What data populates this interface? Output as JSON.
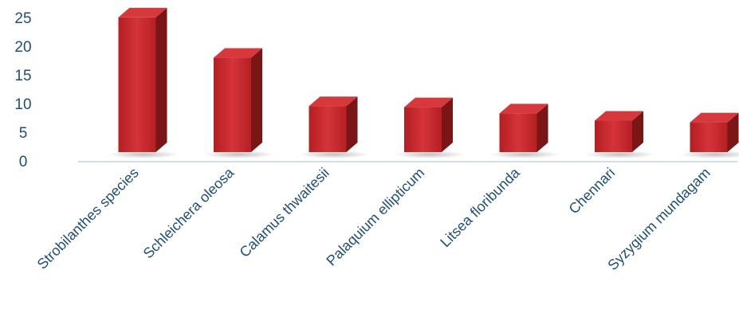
{
  "chart_data": {
    "type": "bar",
    "style": "3d-column",
    "categories": [
      "Strobilanthes species",
      "Schleichera oleosa",
      "Calamus thwaitesii",
      "Palaquium ellipticum",
      "Litsea floribunda",
      "Chennari",
      "Syzygium mundagam"
    ],
    "values": [
      24,
      16.8,
      8.2,
      8,
      6.9,
      5.6,
      5.3
    ],
    "ylim": [
      0,
      25
    ],
    "yticks": [
      "0",
      "5",
      "10",
      "15",
      "20",
      "25"
    ],
    "grid": false,
    "legend": "none",
    "colors": {
      "bar_front": "#c8262b",
      "bar_top": "#d6383b",
      "bar_side": "#7a1616",
      "axis": "#bcd3ea",
      "text": "#1f4e79"
    }
  }
}
